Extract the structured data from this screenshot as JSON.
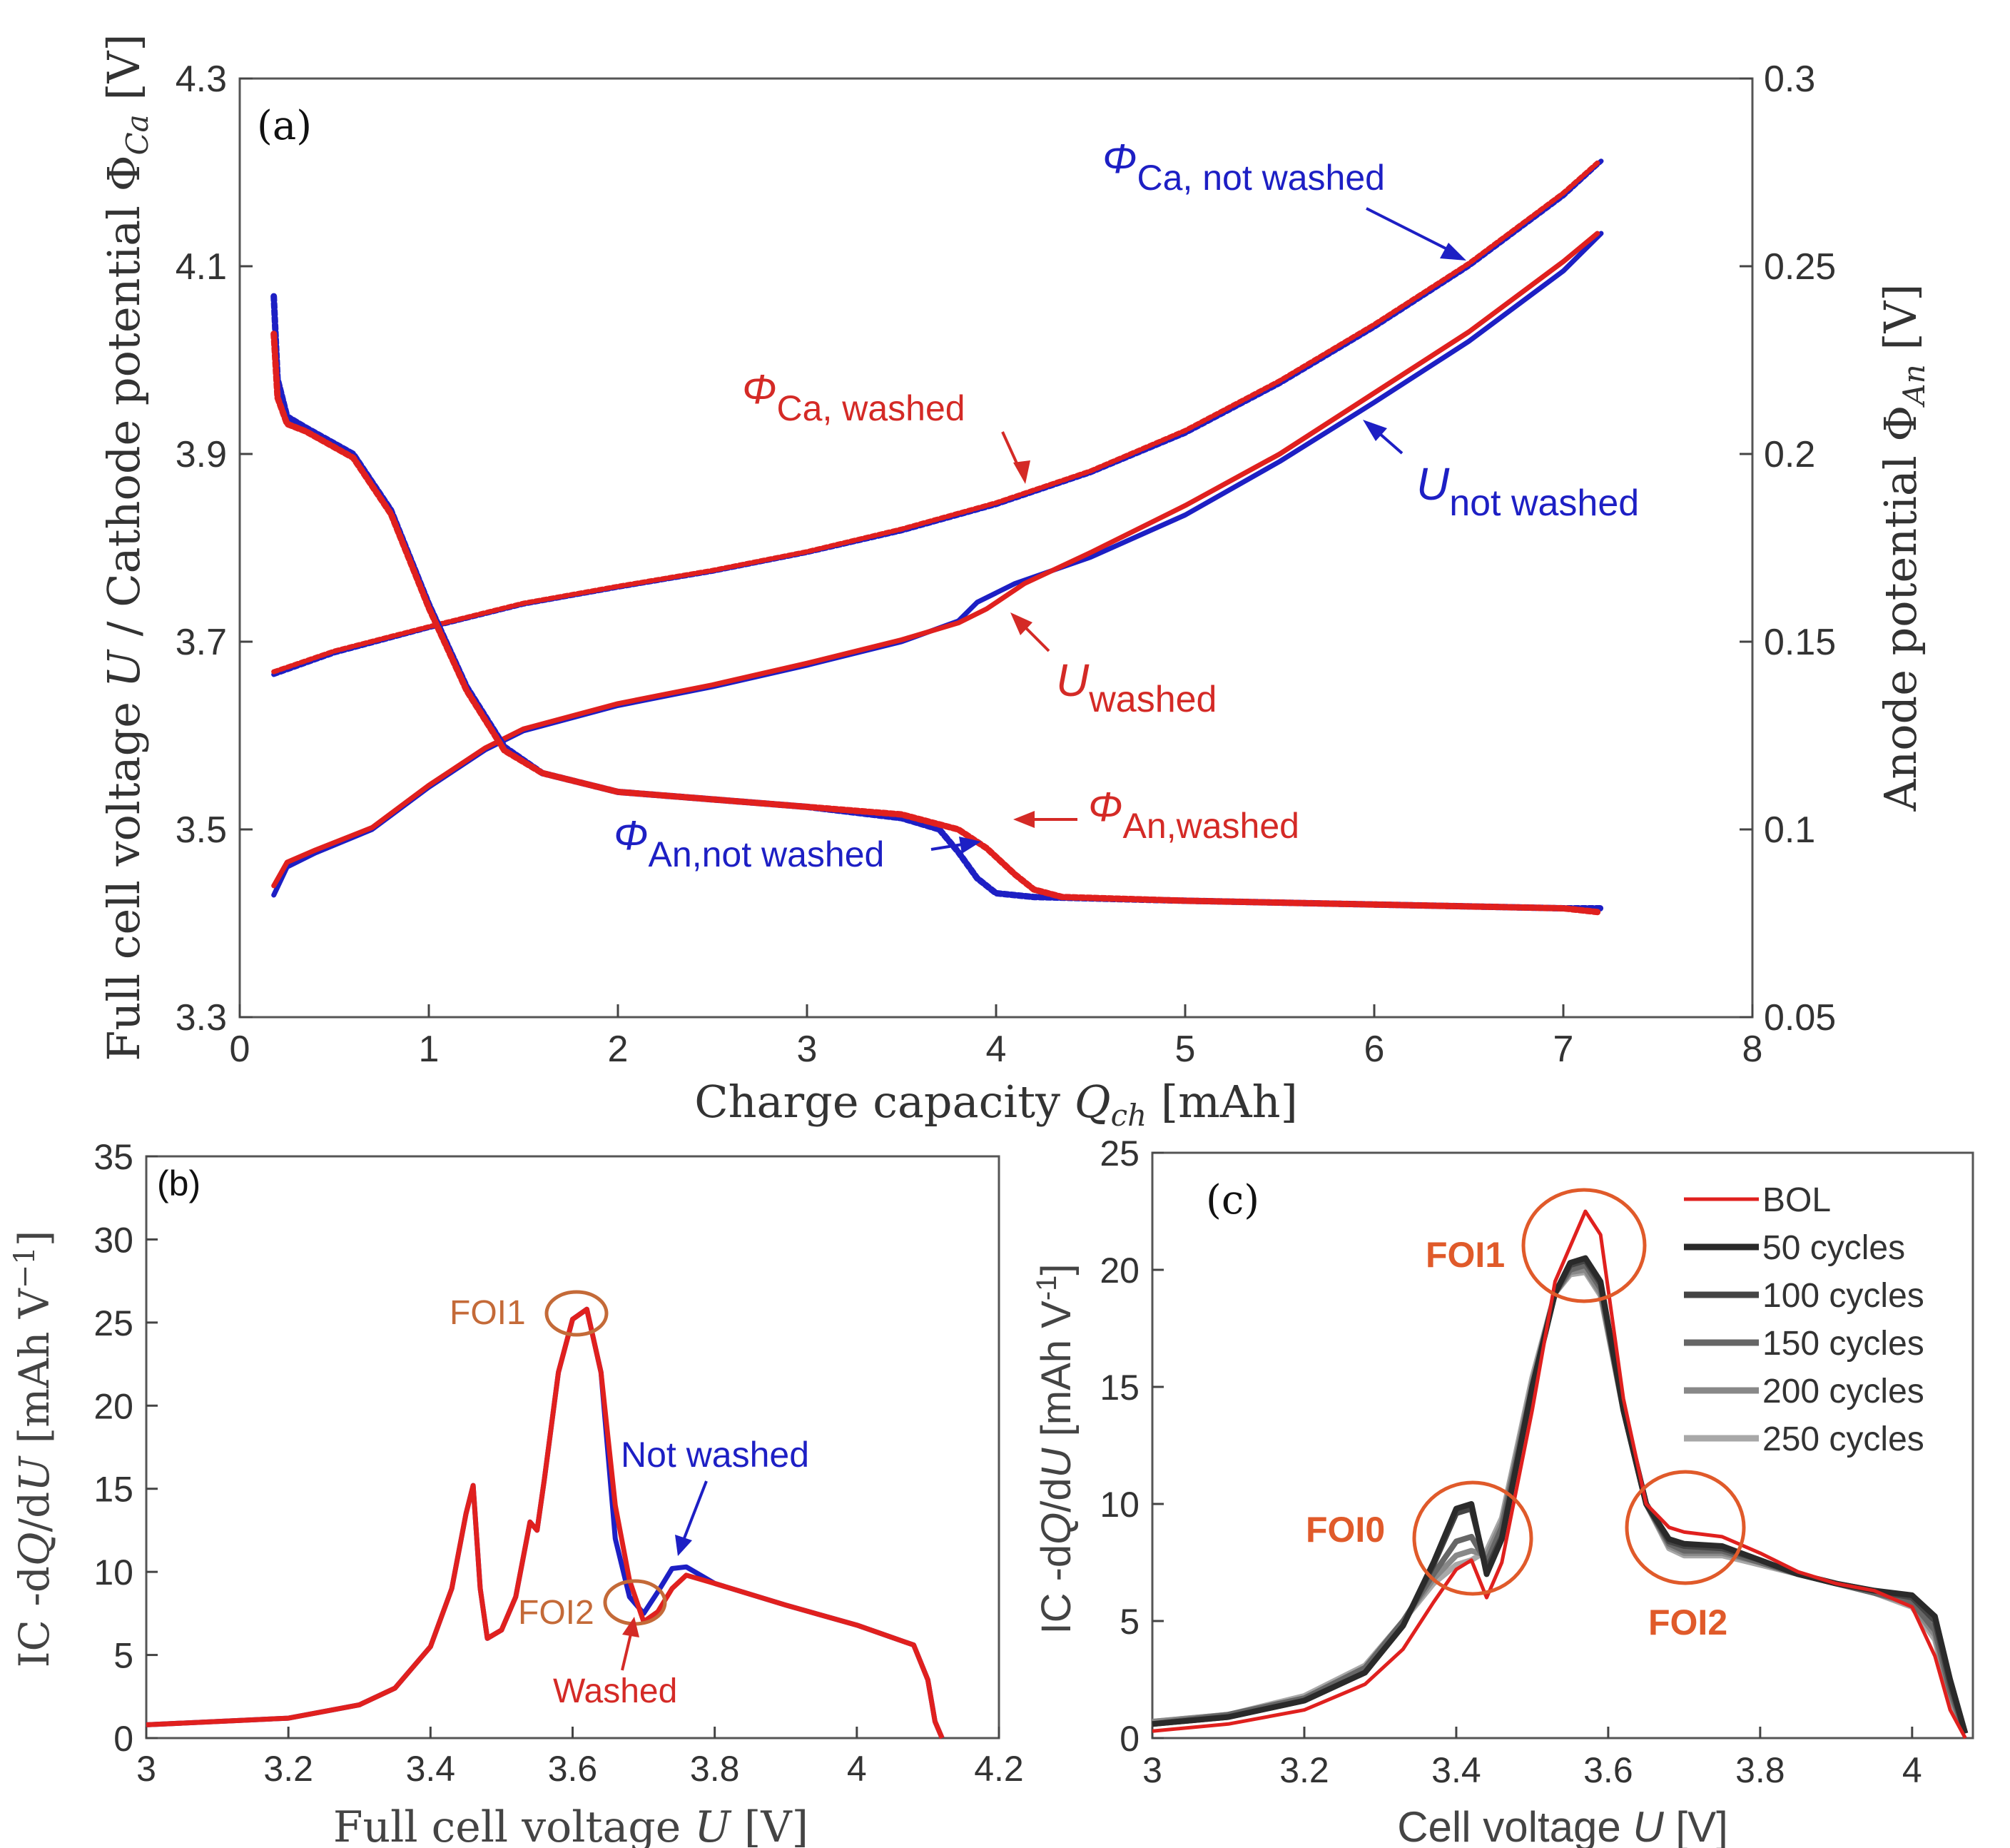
{
  "colors": {
    "red": "#e0201e",
    "blue": "#1d1fc4",
    "orange": "#e05a2a",
    "annot_orange": "#c46a38",
    "axis": "#333333",
    "grays": [
      "#2a2a2a",
      "#444444",
      "#666666",
      "#888888",
      "#a8a8a8"
    ]
  },
  "chart_data": [
    {
      "panel": "(a)",
      "type": "line",
      "xlabel": "Charge capacity Q_ch [mAh]",
      "xlabel_parts": {
        "pre": "Charge capacity ",
        "sym": "Q",
        "sub": "ch",
        "post": " [mAh]"
      },
      "ylabel_left": "Full cell voltage U / Cathode potential Φ_Ca [V]",
      "ylabel_left_parts": {
        "pre": "Full cell voltage ",
        "sym": "U",
        "mid": " / Cathode potential Φ",
        "sub": "Ca",
        "post": " [V]"
      },
      "ylabel_right": "Anode potential Φ_An [V]",
      "ylabel_right_parts": {
        "pre": "Anode potential Φ",
        "sub": "An",
        "post": " [V]"
      },
      "xlim": [
        0,
        8
      ],
      "ylim_left": [
        3.3,
        4.3
      ],
      "ylim_right": [
        0.05,
        0.3
      ],
      "xticks": [
        "0",
        "1",
        "2",
        "3",
        "4",
        "5",
        "6",
        "7",
        "8"
      ],
      "yticks_left": [
        "3.3",
        "3.5",
        "3.7",
        "3.9",
        "4.1",
        "4.3"
      ],
      "yticks_right": [
        "0.05",
        "0.1",
        "0.15",
        "0.2",
        "0.25",
        "0.3"
      ],
      "series": [
        {
          "name": "Φ_Ca, not washed",
          "color": "blue",
          "axis": "left",
          "x": [
            0.18,
            0.5,
            1.0,
            1.5,
            2.0,
            2.5,
            3.0,
            3.5,
            4.0,
            4.5,
            5.0,
            5.5,
            6.0,
            6.5,
            7.0,
            7.2
          ],
          "y": [
            3.665,
            3.688,
            3.715,
            3.74,
            3.758,
            3.775,
            3.795,
            3.818,
            3.846,
            3.88,
            3.922,
            3.975,
            4.035,
            4.1,
            4.175,
            4.212
          ]
        },
        {
          "name": "Φ_Ca, washed",
          "color": "red",
          "axis": "left",
          "x": [
            0.18,
            0.5,
            1.0,
            1.5,
            2.0,
            2.5,
            3.0,
            3.5,
            4.0,
            4.5,
            5.0,
            5.5,
            6.0,
            6.5,
            7.0,
            7.18
          ],
          "y": [
            3.668,
            3.69,
            3.716,
            3.741,
            3.759,
            3.776,
            3.796,
            3.82,
            3.848,
            3.882,
            3.925,
            3.978,
            4.038,
            4.103,
            4.178,
            4.21
          ]
        },
        {
          "name": "U not washed",
          "color": "blue",
          "axis": "left",
          "x": [
            0.18,
            0.25,
            0.4,
            0.7,
            1.0,
            1.3,
            1.5,
            2.0,
            2.5,
            3.0,
            3.5,
            3.8,
            3.9,
            4.1,
            4.5,
            5.0,
            5.5,
            6.0,
            6.5,
            7.0,
            7.2
          ],
          "y": [
            3.43,
            3.46,
            3.475,
            3.5,
            3.545,
            3.585,
            3.605,
            3.632,
            3.652,
            3.675,
            3.7,
            3.722,
            3.742,
            3.762,
            3.79,
            3.835,
            3.892,
            3.955,
            4.02,
            4.095,
            4.135
          ]
        },
        {
          "name": "U washed",
          "color": "red",
          "axis": "left",
          "x": [
            0.18,
            0.25,
            0.4,
            0.7,
            1.0,
            1.3,
            1.5,
            2.0,
            2.5,
            3.0,
            3.5,
            3.8,
            3.95,
            4.15,
            4.5,
            5.0,
            5.5,
            6.0,
            6.5,
            7.0,
            7.18
          ],
          "y": [
            3.44,
            3.465,
            3.478,
            3.502,
            3.547,
            3.587,
            3.607,
            3.634,
            3.654,
            3.677,
            3.702,
            3.72,
            3.735,
            3.762,
            3.795,
            3.845,
            3.9,
            3.965,
            4.03,
            4.105,
            4.135
          ]
        },
        {
          "name": "Φ_An,not washed",
          "color": "blue",
          "axis": "right",
          "x": [
            0.18,
            0.2,
            0.25,
            0.35,
            0.6,
            0.8,
            1.0,
            1.2,
            1.4,
            1.6,
            2.0,
            2.5,
            3.0,
            3.5,
            3.7,
            3.8,
            3.9,
            4.0,
            4.2,
            5.0,
            6.0,
            7.0,
            7.2
          ],
          "y": [
            0.242,
            0.22,
            0.21,
            0.207,
            0.2,
            0.185,
            0.16,
            0.138,
            0.122,
            0.115,
            0.11,
            0.108,
            0.106,
            0.103,
            0.1,
            0.094,
            0.087,
            0.083,
            0.082,
            0.081,
            0.08,
            0.079,
            0.079
          ]
        },
        {
          "name": "Φ_An,washed",
          "color": "red",
          "axis": "right",
          "x": [
            0.18,
            0.2,
            0.25,
            0.35,
            0.6,
            0.8,
            1.0,
            1.2,
            1.4,
            1.6,
            2.0,
            2.5,
            3.0,
            3.5,
            3.8,
            3.95,
            4.1,
            4.2,
            4.35,
            5.0,
            6.0,
            7.0,
            7.18
          ],
          "y": [
            0.232,
            0.215,
            0.208,
            0.206,
            0.199,
            0.184,
            0.159,
            0.137,
            0.121,
            0.115,
            0.11,
            0.108,
            0.106,
            0.104,
            0.1,
            0.095,
            0.088,
            0.084,
            0.082,
            0.081,
            0.08,
            0.079,
            0.078
          ]
        }
      ],
      "annotations": {
        "panel_label": "(a)",
        "ca_not_washed": {
          "sym": "Φ",
          "sub": "Ca, not washed"
        },
        "ca_washed": {
          "sym": "Φ",
          "sub": "Ca, washed"
        },
        "u_not_washed": {
          "sym": "U",
          "sub": "not washed"
        },
        "u_washed": {
          "sym": "U",
          "sub": "washed"
        },
        "an_washed": {
          "sym": "Φ",
          "sub": "An,washed"
        },
        "an_not_washed": {
          "sym": "Φ",
          "sub": "An,not washed"
        }
      }
    },
    {
      "panel": "(b)",
      "type": "line",
      "xlabel": "Full cell voltage U [V]",
      "xlabel_parts": {
        "pre": "Full cell voltage ",
        "sym": "U",
        "post": " [V]"
      },
      "ylabel": "IC -dQ/dU [mAh V^-1]",
      "ylabel_parts": {
        "pre": "IC -d",
        "q": "Q",
        "mid": "/d",
        "u": "U",
        "post": " [mAh V",
        "sup": "−1",
        "end": "]"
      },
      "xlim": [
        3.0,
        4.2
      ],
      "ylim": [
        0,
        35
      ],
      "xticks": [
        "3",
        "3.2",
        "3.4",
        "3.6",
        "3.8",
        "4",
        "4.2"
      ],
      "yticks": [
        "0",
        "5",
        "10",
        "15",
        "20",
        "25",
        "30",
        "35"
      ],
      "series": [
        {
          "name": "Not washed",
          "color": "blue",
          "x": [
            3.0,
            3.2,
            3.3,
            3.35,
            3.4,
            3.43,
            3.45,
            3.46,
            3.47,
            3.48,
            3.5,
            3.52,
            3.54,
            3.55,
            3.56,
            3.58,
            3.6,
            3.62,
            3.64,
            3.66,
            3.68,
            3.7,
            3.72,
            3.74,
            3.76,
            3.8,
            3.9,
            4.0,
            4.08,
            4.1,
            4.11,
            4.12
          ],
          "y": [
            0.8,
            1.2,
            2.0,
            3.0,
            5.5,
            9.0,
            13.5,
            15.2,
            9.0,
            6.0,
            6.5,
            8.5,
            13.0,
            12.5,
            15.5,
            22.0,
            25.2,
            25.8,
            22.0,
            12.0,
            8.5,
            7.5,
            8.8,
            10.2,
            10.3,
            9.3,
            8.0,
            6.8,
            5.6,
            3.5,
            1.0,
            0.0
          ]
        },
        {
          "name": "Washed",
          "color": "red",
          "x": [
            3.0,
            3.2,
            3.3,
            3.35,
            3.4,
            3.43,
            3.45,
            3.46,
            3.47,
            3.48,
            3.5,
            3.52,
            3.54,
            3.55,
            3.56,
            3.58,
            3.6,
            3.62,
            3.64,
            3.66,
            3.68,
            3.7,
            3.72,
            3.74,
            3.76,
            3.8,
            3.9,
            4.0,
            4.08,
            4.1,
            4.11,
            4.12
          ],
          "y": [
            0.8,
            1.2,
            2.0,
            3.0,
            5.5,
            9.0,
            13.5,
            15.2,
            9.0,
            6.0,
            6.5,
            8.5,
            13.0,
            12.5,
            15.5,
            22.0,
            25.2,
            25.8,
            22.0,
            14.0,
            9.5,
            7.0,
            7.6,
            9.0,
            9.8,
            9.3,
            8.0,
            6.8,
            5.6,
            3.5,
            1.0,
            0.0
          ]
        }
      ],
      "annotations": {
        "panel_label": "(b)",
        "foi1": "FOI1",
        "foi2": "FOI2",
        "not_washed": "Not washed",
        "washed": "Washed"
      }
    },
    {
      "panel": "(c)",
      "type": "line",
      "xlabel": "Cell voltage U [V]",
      "xlabel_parts": {
        "pre": "Cell voltage ",
        "sym": "U",
        "post": " [V]"
      },
      "ylabel": "IC -dQ/dU [mAh V^-1]",
      "ylabel_parts": {
        "pre": "IC -d",
        "q": "Q",
        "mid": "/d",
        "u": "U",
        "post": " [mAh V",
        "sup": "-1",
        "end": "]"
      },
      "xlim": [
        3.0,
        4.08
      ],
      "ylim": [
        0,
        25
      ],
      "xticks": [
        "3",
        "3.2",
        "3.4",
        "3.6",
        "3.8",
        "4"
      ],
      "yticks": [
        "0",
        "5",
        "10",
        "15",
        "20",
        "25"
      ],
      "legend_position": "top-right",
      "series": [
        {
          "name": "BOL",
          "color": "red",
          "x": [
            3.0,
            3.1,
            3.2,
            3.28,
            3.33,
            3.37,
            3.4,
            3.42,
            3.44,
            3.46,
            3.5,
            3.53,
            3.55,
            3.57,
            3.59,
            3.62,
            3.65,
            3.68,
            3.7,
            3.75,
            3.8,
            3.85,
            3.9,
            3.95,
            4.0,
            4.03,
            4.05,
            4.07
          ],
          "y": [
            0.3,
            0.6,
            1.2,
            2.3,
            3.8,
            5.8,
            7.2,
            7.6,
            6.0,
            7.5,
            14.0,
            19.5,
            21.0,
            22.5,
            21.5,
            14.5,
            10.0,
            9.0,
            8.8,
            8.6,
            7.9,
            7.1,
            6.6,
            6.3,
            5.6,
            3.5,
            1.2,
            0.0
          ]
        },
        {
          "name": "50 cycles",
          "color": "g0",
          "x": [
            3.0,
            3.1,
            3.2,
            3.28,
            3.33,
            3.37,
            3.4,
            3.42,
            3.44,
            3.46,
            3.5,
            3.53,
            3.55,
            3.57,
            3.59,
            3.62,
            3.65,
            3.68,
            3.7,
            3.75,
            3.8,
            3.85,
            3.9,
            3.95,
            4.0,
            4.03,
            4.05,
            4.07
          ],
          "y": [
            0.6,
            0.9,
            1.6,
            2.8,
            4.8,
            7.5,
            9.8,
            10.0,
            7.0,
            8.5,
            15.0,
            19.0,
            20.3,
            20.5,
            19.5,
            14.0,
            10.0,
            8.5,
            8.3,
            8.2,
            7.6,
            7.0,
            6.6,
            6.3,
            6.1,
            5.2,
            2.5,
            0.2
          ]
        },
        {
          "name": "100 cycles",
          "color": "g1",
          "x": [
            3.0,
            3.1,
            3.2,
            3.28,
            3.33,
            3.37,
            3.4,
            3.42,
            3.44,
            3.46,
            3.5,
            3.53,
            3.55,
            3.57,
            3.59,
            3.62,
            3.65,
            3.68,
            3.7,
            3.75,
            3.8,
            3.85,
            3.9,
            3.95,
            4.0,
            4.03,
            4.05,
            4.07
          ],
          "y": [
            0.6,
            0.9,
            1.6,
            2.8,
            4.8,
            7.4,
            9.6,
            9.8,
            7.2,
            8.6,
            15.0,
            19.0,
            20.2,
            20.4,
            19.4,
            14.0,
            10.0,
            8.4,
            8.2,
            8.1,
            7.6,
            7.0,
            6.6,
            6.3,
            6.0,
            5.0,
            2.3,
            0.2
          ]
        },
        {
          "name": "150 cycles",
          "color": "g2",
          "x": [
            3.0,
            3.1,
            3.2,
            3.28,
            3.33,
            3.37,
            3.4,
            3.42,
            3.44,
            3.46,
            3.5,
            3.53,
            3.55,
            3.57,
            3.59,
            3.62,
            3.65,
            3.68,
            3.7,
            3.75,
            3.8,
            3.85,
            3.9,
            3.95,
            4.0,
            4.03,
            4.05,
            4.07
          ],
          "y": [
            0.6,
            1.0,
            1.7,
            3.0,
            5.0,
            7.0,
            8.4,
            8.6,
            7.5,
            9.0,
            15.0,
            19.0,
            20.0,
            20.2,
            19.2,
            14.0,
            10.0,
            8.3,
            8.0,
            8.0,
            7.5,
            7.0,
            6.6,
            6.2,
            5.8,
            4.6,
            2.0,
            0.2
          ]
        },
        {
          "name": "200 cycles",
          "color": "g3",
          "x": [
            3.0,
            3.1,
            3.2,
            3.28,
            3.33,
            3.37,
            3.4,
            3.42,
            3.44,
            3.46,
            3.5,
            3.53,
            3.55,
            3.57,
            3.59,
            3.62,
            3.65,
            3.68,
            3.7,
            3.75,
            3.8,
            3.85,
            3.9,
            3.95,
            4.0,
            4.03,
            4.05,
            4.07
          ],
          "y": [
            0.7,
            1.0,
            1.7,
            3.0,
            5.0,
            6.8,
            7.8,
            8.0,
            7.8,
            9.2,
            15.2,
            19.0,
            19.9,
            20.0,
            19.0,
            14.0,
            10.0,
            8.2,
            7.9,
            7.9,
            7.5,
            7.0,
            6.6,
            6.2,
            5.7,
            4.4,
            1.8,
            0.2
          ]
        },
        {
          "name": "250 cycles",
          "color": "g4",
          "x": [
            3.0,
            3.1,
            3.2,
            3.28,
            3.33,
            3.37,
            3.4,
            3.42,
            3.44,
            3.46,
            3.5,
            3.53,
            3.55,
            3.57,
            3.59,
            3.62,
            3.65,
            3.68,
            3.7,
            3.75,
            3.8,
            3.85,
            3.9,
            3.95,
            4.0,
            4.03,
            4.05,
            4.07
          ],
          "y": [
            0.7,
            1.0,
            1.8,
            3.1,
            5.0,
            6.6,
            7.4,
            7.6,
            8.0,
            9.4,
            15.4,
            19.0,
            19.8,
            19.9,
            18.9,
            14.0,
            10.0,
            8.1,
            7.8,
            7.8,
            7.4,
            7.0,
            6.6,
            6.2,
            5.6,
            4.2,
            1.7,
            0.2
          ]
        }
      ],
      "annotations": {
        "panel_label": "(c)",
        "foi0": "FOI0",
        "foi1": "FOI1",
        "foi2": "FOI2"
      }
    }
  ]
}
